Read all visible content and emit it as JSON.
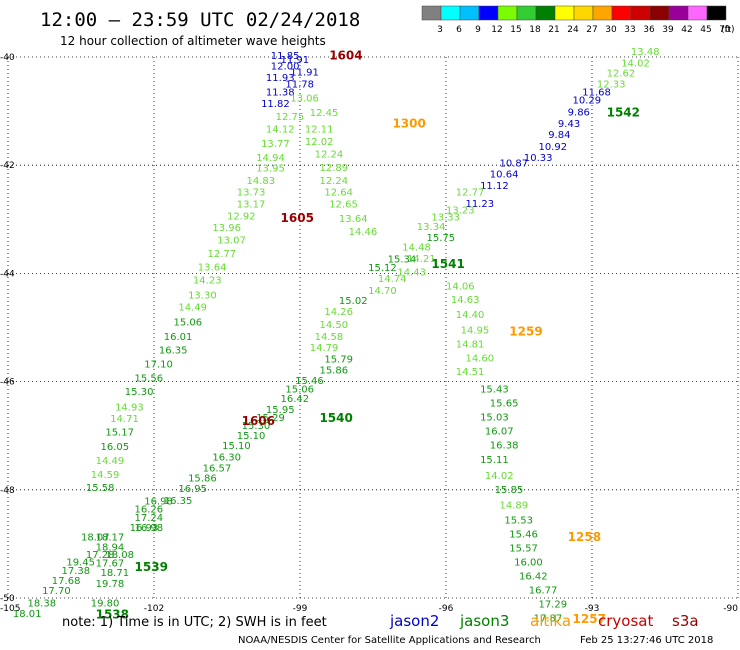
{
  "header": {
    "title": "12:00 – 23:59 UTC 02/24/2018",
    "subtitle": "12 hour collection of altimeter wave heights"
  },
  "colorbar": {
    "labels": [
      "3",
      "6",
      "9",
      "12",
      "15",
      "18",
      "21",
      "24",
      "27",
      "30",
      "33",
      "36",
      "39",
      "42",
      "45",
      "70"
    ],
    "unit": "(ft)",
    "colors": [
      "#808080",
      "#00ffff",
      "#00bfff",
      "#0000ff",
      "#7cfc00",
      "#32cd32",
      "#008000",
      "#ffff00",
      "#ffd700",
      "#ffa500",
      "#ff0000",
      "#cc0000",
      "#8b0000",
      "#990099",
      "#ff66ff",
      "#000000"
    ]
  },
  "axes": {
    "x_ticks": [
      "-105",
      "-102",
      "-99",
      "-96",
      "-93",
      "-90"
    ],
    "y_ticks": [
      "-40",
      "-42",
      "-44",
      "-46",
      "-48",
      "-50"
    ]
  },
  "footer": {
    "note": "note:  1) Time is in UTC;  2) SWH is in feet",
    "legend": [
      {
        "name": "jason2",
        "color": "#0000cc"
      },
      {
        "name": "jason3",
        "color": "#008000"
      },
      {
        "name": "altika",
        "color": "#ff9900"
      },
      {
        "name": "cryosat",
        "color": "#cc0000"
      },
      {
        "name": "s3a",
        "color": "#990000"
      }
    ],
    "credit": "NOAA/NESDIS Center for Satellite Applications and Research",
    "timestamp": "Feb 25 13:27:46 UTC 2018"
  },
  "chart_data": {
    "type": "scatter",
    "xlim": [
      -105,
      -90
    ],
    "ylim": [
      -50,
      -40
    ],
    "grid": true,
    "tracks": [
      {
        "name": "jason2",
        "color": "#0000cc",
        "points": [
          {
            "lon": -99.6,
            "lat": -40.04,
            "v": "11.85"
          },
          {
            "lon": -99.4,
            "lat": -40.11,
            "v": "11.91"
          },
          {
            "lon": -99.6,
            "lat": -40.23,
            "v": "12.00"
          },
          {
            "lon": -99.2,
            "lat": -40.34,
            "v": "11.91"
          },
          {
            "lon": -99.7,
            "lat": -40.44,
            "v": "11.93"
          },
          {
            "lon": -99.3,
            "lat": -40.56,
            "v": "11.78"
          },
          {
            "lon": -99.7,
            "lat": -40.71,
            "v": "11.38"
          },
          {
            "lon": -99.8,
            "lat": -40.92,
            "v": "11.82"
          },
          {
            "lon": -93.2,
            "lat": -40.71,
            "v": "11.68"
          },
          {
            "lon": -93.4,
            "lat": -40.86,
            "v": "10.29"
          },
          {
            "lon": -93.5,
            "lat": -41.08,
            "v": "9.86"
          },
          {
            "lon": -93.7,
            "lat": -41.29,
            "v": "9.43"
          },
          {
            "lon": -93.9,
            "lat": -41.5,
            "v": "9.84"
          },
          {
            "lon": -94.1,
            "lat": -41.72,
            "v": "10.92"
          },
          {
            "lon": -94.4,
            "lat": -41.92,
            "v": "10.33"
          },
          {
            "lon": -94.9,
            "lat": -42.02,
            "v": "10.87"
          },
          {
            "lon": -95.1,
            "lat": -42.23,
            "v": "10.64"
          },
          {
            "lon": -95.3,
            "lat": -42.44,
            "v": "11.12"
          },
          {
            "lon": -95.6,
            "lat": -42.77,
            "v": "11.23"
          }
        ]
      },
      {
        "name": "jason3",
        "color": "#00aa00",
        "points": [
          {
            "lon": -92.2,
            "lat": -39.96,
            "v": "13.48"
          },
          {
            "lon": -92.4,
            "lat": -40.18,
            "v": "14.02"
          },
          {
            "lon": -92.7,
            "lat": -40.36,
            "v": "12.62"
          },
          {
            "lon": -92.9,
            "lat": -40.56,
            "v": "12.33"
          },
          {
            "lon": -99.2,
            "lat": -40.82,
            "v": "13.06"
          },
          {
            "lon": -99.5,
            "lat": -41.16,
            "v": "12.75"
          },
          {
            "lon": -98.8,
            "lat": -41.09,
            "v": "12.45"
          },
          {
            "lon": -98.9,
            "lat": -41.4,
            "v": "12.11"
          },
          {
            "lon": -99.7,
            "lat": -41.4,
            "v": "14.12"
          },
          {
            "lon": -99.8,
            "lat": -41.66,
            "v": "13.77"
          },
          {
            "lon": -98.9,
            "lat": -41.63,
            "v": "12.02"
          },
          {
            "lon": -98.7,
            "lat": -41.86,
            "v": "12.24"
          },
          {
            "lon": -99.9,
            "lat": -41.92,
            "v": "14.94"
          },
          {
            "lon": -99.9,
            "lat": -42.12,
            "v": "13.95"
          },
          {
            "lon": -98.6,
            "lat": -42.11,
            "v": "12.89"
          },
          {
            "lon": -100.1,
            "lat": -42.35,
            "v": "14.83"
          },
          {
            "lon": -98.6,
            "lat": -42.35,
            "v": "12.24"
          },
          {
            "lon": -100.3,
            "lat": -42.56,
            "v": "13.73"
          },
          {
            "lon": -98.5,
            "lat": -42.56,
            "v": "12.64"
          },
          {
            "lon": -100.3,
            "lat": -42.78,
            "v": "13.17"
          },
          {
            "lon": -95.8,
            "lat": -42.56,
            "v": "12.77"
          },
          {
            "lon": -98.4,
            "lat": -42.78,
            "v": "12.65"
          },
          {
            "lon": -100.5,
            "lat": -43.0,
            "v": "12.92"
          },
          {
            "lon": -96.0,
            "lat": -42.89,
            "v": "13.23"
          },
          {
            "lon": -98.2,
            "lat": -43.05,
            "v": "13.64"
          },
          {
            "lon": -96.3,
            "lat": -43.02,
            "v": "13.33"
          },
          {
            "lon": -100.8,
            "lat": -43.22,
            "v": "13.96"
          },
          {
            "lon": -96.6,
            "lat": -43.2,
            "v": "13.34"
          },
          {
            "lon": -98.0,
            "lat": -43.29,
            "v": "14.46"
          },
          {
            "lon": -100.7,
            "lat": -43.45,
            "v": "13.07"
          },
          {
            "lon": -96.4,
            "lat": -43.4,
            "v": "15.75"
          },
          {
            "lon": -96.9,
            "lat": -43.58,
            "v": "14.48"
          },
          {
            "lon": -100.9,
            "lat": -43.7,
            "v": "12.77"
          },
          {
            "lon": -96.8,
            "lat": -43.79,
            "v": "14.21"
          },
          {
            "lon": -97.2,
            "lat": -43.8,
            "v": "15.34"
          },
          {
            "lon": -97.6,
            "lat": -43.96,
            "v": "15.12"
          },
          {
            "lon": -101.1,
            "lat": -43.95,
            "v": "13.64"
          },
          {
            "lon": -97.0,
            "lat": -44.04,
            "v": "14.43"
          },
          {
            "lon": -101.2,
            "lat": -44.19,
            "v": "14.23"
          },
          {
            "lon": -97.4,
            "lat": -44.16,
            "v": "14.74"
          },
          {
            "lon": -96.0,
            "lat": -44.3,
            "v": "14.06"
          },
          {
            "lon": -97.6,
            "lat": -44.38,
            "v": "14.70"
          },
          {
            "lon": -101.3,
            "lat": -44.46,
            "v": "13.30"
          },
          {
            "lon": -95.9,
            "lat": -44.55,
            "v": "14.63"
          },
          {
            "lon": -98.2,
            "lat": -44.57,
            "v": "15.02"
          },
          {
            "lon": -101.5,
            "lat": -44.69,
            "v": "14.49"
          },
          {
            "lon": -98.5,
            "lat": -44.77,
            "v": "14.26"
          },
          {
            "lon": -95.8,
            "lat": -44.82,
            "v": "14.40"
          },
          {
            "lon": -98.6,
            "lat": -45.01,
            "v": "14.50"
          },
          {
            "lon": -101.6,
            "lat": -44.96,
            "v": "15.06"
          },
          {
            "lon": -98.7,
            "lat": -45.23,
            "v": "14.58"
          },
          {
            "lon": -95.7,
            "lat": -45.11,
            "v": "14.95"
          },
          {
            "lon": -101.8,
            "lat": -45.23,
            "v": "16.01"
          },
          {
            "lon": -98.8,
            "lat": -45.43,
            "v": "14.79"
          },
          {
            "lon": -95.8,
            "lat": -45.37,
            "v": "14.81"
          },
          {
            "lon": -98.5,
            "lat": -45.65,
            "v": "15.79"
          },
          {
            "lon": -101.9,
            "lat": -45.48,
            "v": "16.35"
          },
          {
            "lon": -95.6,
            "lat": -45.63,
            "v": "14.60"
          },
          {
            "lon": -98.6,
            "lat": -45.85,
            "v": "15.86"
          },
          {
            "lon": -102.2,
            "lat": -45.74,
            "v": "17.10"
          },
          {
            "lon": -95.8,
            "lat": -45.88,
            "v": "14.51"
          },
          {
            "lon": -99.1,
            "lat": -46.04,
            "v": "15.46"
          },
          {
            "lon": -102.4,
            "lat": -46.0,
            "v": "15.56"
          },
          {
            "lon": -99.3,
            "lat": -46.2,
            "v": "15.06"
          },
          {
            "lon": -95.3,
            "lat": -46.2,
            "v": "15.43"
          },
          {
            "lon": -102.6,
            "lat": -46.25,
            "v": "15.30"
          },
          {
            "lon": -99.4,
            "lat": -46.38,
            "v": "16.42"
          },
          {
            "lon": -95.1,
            "lat": -46.46,
            "v": "15.65"
          },
          {
            "lon": -102.8,
            "lat": -46.53,
            "v": "14.93"
          },
          {
            "lon": -99.7,
            "lat": -46.58,
            "v": "15.95"
          },
          {
            "lon": -99.9,
            "lat": -46.73,
            "v": "15.29"
          },
          {
            "lon": -95.3,
            "lat": -46.72,
            "v": "15.03"
          },
          {
            "lon": -102.9,
            "lat": -46.75,
            "v": "14.71"
          },
          {
            "lon": -100.2,
            "lat": -46.88,
            "v": "15.30"
          },
          {
            "lon": -95.2,
            "lat": -46.98,
            "v": "16.07"
          },
          {
            "lon": -103.0,
            "lat": -47.0,
            "v": "15.17"
          },
          {
            "lon": -100.3,
            "lat": -47.06,
            "v": "15.10"
          },
          {
            "lon": -95.1,
            "lat": -47.24,
            "v": "16.38"
          },
          {
            "lon": -100.6,
            "lat": -47.25,
            "v": "15.10"
          },
          {
            "lon": -103.1,
            "lat": -47.26,
            "v": "16.05"
          },
          {
            "lon": -95.3,
            "lat": -47.5,
            "v": "15.11"
          },
          {
            "lon": -100.8,
            "lat": -47.46,
            "v": "16.30"
          },
          {
            "lon": -103.2,
            "lat": -47.52,
            "v": "14.49"
          },
          {
            "lon": -101.0,
            "lat": -47.66,
            "v": "16.57"
          },
          {
            "lon": -103.3,
            "lat": -47.78,
            "v": "14.59"
          },
          {
            "lon": -95.2,
            "lat": -47.8,
            "v": "14.02"
          },
          {
            "lon": -101.3,
            "lat": -47.85,
            "v": "15.86"
          },
          {
            "lon": -101.5,
            "lat": -48.04,
            "v": "16.95"
          },
          {
            "lon": -95.0,
            "lat": -48.06,
            "v": "15.85"
          },
          {
            "lon": -103.4,
            "lat": -48.02,
            "v": "15.58"
          },
          {
            "lon": -101.8,
            "lat": -48.26,
            "v": "16.35"
          },
          {
            "lon": -102.2,
            "lat": -48.27,
            "v": "16.98"
          },
          {
            "lon": -94.9,
            "lat": -48.35,
            "v": "14.89"
          },
          {
            "lon": -102.4,
            "lat": -48.42,
            "v": "16.26"
          },
          {
            "lon": -102.4,
            "lat": -48.58,
            "v": "17.24"
          },
          {
            "lon": -94.8,
            "lat": -48.62,
            "v": "15.53"
          },
          {
            "lon": -102.5,
            "lat": -48.76,
            "v": "16.93"
          },
          {
            "lon": -102.4,
            "lat": -48.76,
            "v": "16.98"
          },
          {
            "lon": -94.7,
            "lat": -48.88,
            "v": "15.46"
          },
          {
            "lon": -103.2,
            "lat": -48.94,
            "v": "18.17"
          },
          {
            "lon": -103.5,
            "lat": -48.94,
            "v": "18.07"
          },
          {
            "lon": -94.7,
            "lat": -49.14,
            "v": "15.57"
          },
          {
            "lon": -103.2,
            "lat": -49.12,
            "v": "18.94"
          },
          {
            "lon": -103.0,
            "lat": -49.26,
            "v": "18.08"
          },
          {
            "lon": -103.4,
            "lat": -49.26,
            "v": "17.28"
          },
          {
            "lon": -94.6,
            "lat": -49.4,
            "v": "16.00"
          },
          {
            "lon": -103.8,
            "lat": -49.4,
            "v": "19.45"
          },
          {
            "lon": -103.2,
            "lat": -49.42,
            "v": "17.67"
          },
          {
            "lon": -94.5,
            "lat": -49.66,
            "v": "16.42"
          },
          {
            "lon": -103.9,
            "lat": -49.56,
            "v": "17.38"
          },
          {
            "lon": -103.1,
            "lat": -49.59,
            "v": "18.71"
          },
          {
            "lon": -104.1,
            "lat": -49.74,
            "v": "17.68"
          },
          {
            "lon": -94.3,
            "lat": -49.92,
            "v": "16.77"
          },
          {
            "lon": -103.2,
            "lat": -49.8,
            "v": "19.78"
          },
          {
            "lon": -104.3,
            "lat": -49.93,
            "v": "17.70"
          },
          {
            "lon": -94.1,
            "lat": -50.18,
            "v": "17.29"
          },
          {
            "lon": -104.6,
            "lat": -50.16,
            "v": "18.38"
          },
          {
            "lon": -103.3,
            "lat": -50.16,
            "v": "19.80"
          },
          {
            "lon": -104.9,
            "lat": -50.35,
            "v": "18.01"
          },
          {
            "lon": -94.2,
            "lat": -50.43,
            "v": "17.87"
          }
        ]
      }
    ],
    "pass_times": [
      {
        "lon": -98.4,
        "lat": -40.05,
        "t": "1604",
        "color": "#990000"
      },
      {
        "lon": -97.1,
        "lat": -41.3,
        "t": "1300",
        "color": "#ff9900"
      },
      {
        "lon": -92.7,
        "lat": -41.1,
        "t": "1542",
        "color": "#008000"
      },
      {
        "lon": -99.4,
        "lat": -43.05,
        "t": "1605",
        "color": "#990000"
      },
      {
        "lon": -96.3,
        "lat": -43.9,
        "t": "1541",
        "color": "#008000"
      },
      {
        "lon": -94.7,
        "lat": -45.15,
        "t": "1259",
        "color": "#ff9900"
      },
      {
        "lon": -100.2,
        "lat": -46.8,
        "t": "1606",
        "color": "#990000"
      },
      {
        "lon": -98.6,
        "lat": -46.75,
        "t": "1540",
        "color": "#008000"
      },
      {
        "lon": -93.5,
        "lat": -48.95,
        "t": "1258",
        "color": "#ff9900"
      },
      {
        "lon": -102.4,
        "lat": -49.5,
        "t": "1539",
        "color": "#008000"
      },
      {
        "lon": -103.2,
        "lat": -50.38,
        "t": "1538",
        "color": "#008000"
      },
      {
        "lon": -93.4,
        "lat": -50.46,
        "t": "1257",
        "color": "#ff9900"
      }
    ]
  }
}
